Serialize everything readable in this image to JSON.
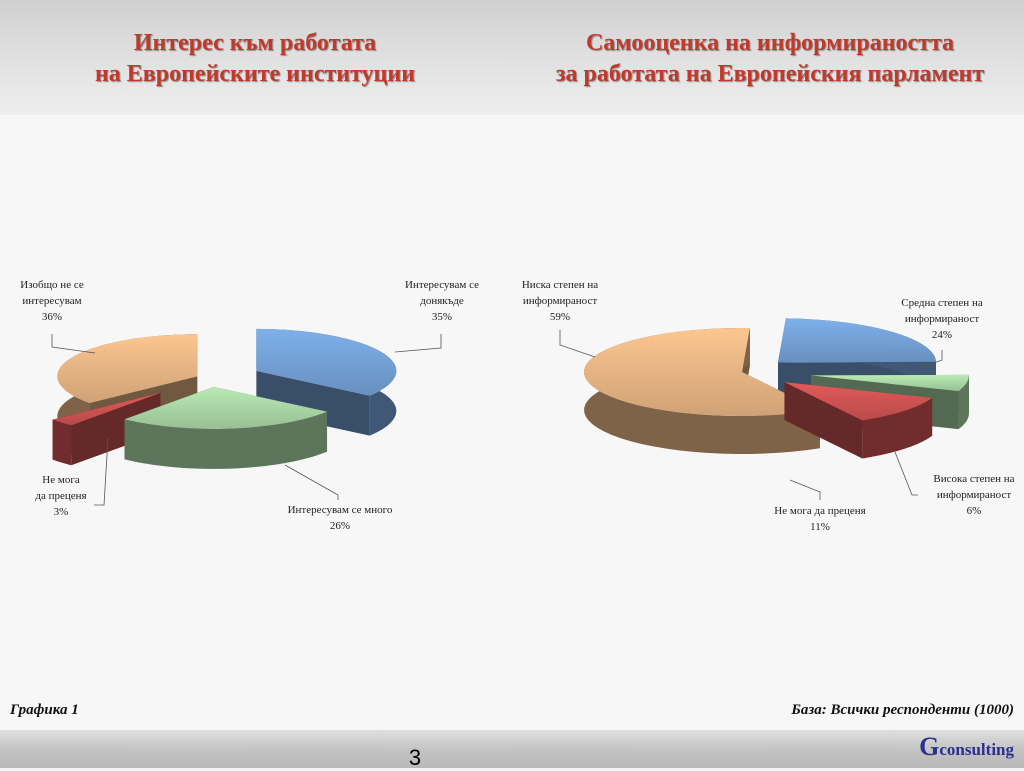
{
  "titles": {
    "left_line1": "Интерес към работата",
    "left_line2": "на Европейските институции",
    "right_line1": "Самооценка на информираността",
    "right_line2": "за работата на Европейския парламент"
  },
  "footer": {
    "left": "Графика 1",
    "right": "База:  Всички респонденти (1000)",
    "page_number": "3"
  },
  "logo": {
    "initial": "G",
    "rest": "consulting"
  },
  "chart_data": [
    {
      "type": "pie",
      "title": "Интерес към работата на Европейските институции",
      "slices": [
        {
          "label": "Интересувам се донякъде",
          "value": 35,
          "display": "35%",
          "color": "#7fb0ea"
        },
        {
          "label": "Интересувам се много",
          "value": 26,
          "display": "26%",
          "color": "#b9eab5"
        },
        {
          "label": "Не мога да преценя",
          "value": 3,
          "display": "3%",
          "color": "#e25a5a"
        },
        {
          "label": "Изобщо не се интересувам",
          "value": 36,
          "display": "36%",
          "color": "#fcc690"
        }
      ],
      "label_texts": {
        "0": "Интересувам се\nдонякъде\n35%",
        "1": "Интересувам се много\n26%",
        "2": "Не мога\nда преценя\n3%",
        "3": "Изобщо не се\nинтересувам\n36%"
      }
    },
    {
      "type": "pie",
      "title": "Самооценка на информираността за работата на Европейския парламент",
      "slices": [
        {
          "label": "Средна степен на информираност",
          "value": 24,
          "display": "24%",
          "color": "#7fb0ea"
        },
        {
          "label": "Висока степен на информираност",
          "value": 6,
          "display": "6%",
          "color": "#b9eab5"
        },
        {
          "label": "Не мога да преценя",
          "value": 11,
          "display": "11%",
          "color": "#e25a5a"
        },
        {
          "label": "Ниска степен на информираност",
          "value": 59,
          "display": "59%",
          "color": "#fcc690"
        }
      ],
      "label_texts": {
        "0": "Средна степен на\nинформираност\n24%",
        "1": "Висока степен на\nинформираност\n6%",
        "2": "Не мога да преценя\n11%",
        "3": "Ниска степен на\nинформираност\n59%"
      }
    }
  ]
}
